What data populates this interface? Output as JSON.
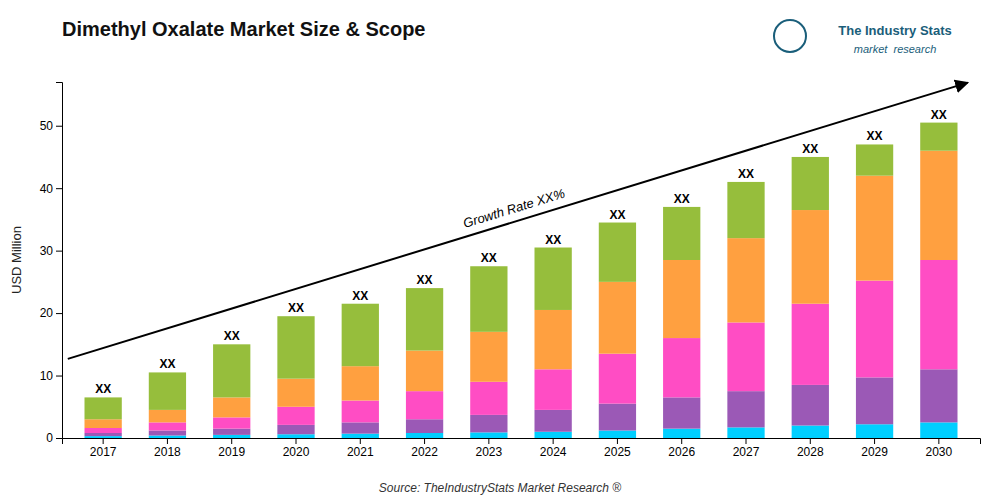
{
  "chart_data": {
    "type": "bar",
    "stacked": true,
    "title": "Dimethyl Oxalate Market Size & Scope",
    "ylabel": "USD Million",
    "source": "Source: TheIndustryStats Market Research ®",
    "growth_label": "Growth Rate XX%",
    "logo": {
      "name": "The Industry Stats",
      "tagline": "market  research"
    },
    "categories": [
      "2017",
      "2018",
      "2019",
      "2020",
      "2021",
      "2022",
      "2023",
      "2024",
      "2025",
      "2026",
      "2027",
      "2028",
      "2029",
      "2030"
    ],
    "bar_labels": [
      "XX",
      "XX",
      "XX",
      "XX",
      "XX",
      "XX",
      "XX",
      "XX",
      "XX",
      "XX",
      "XX",
      "XX",
      "XX",
      "XX"
    ],
    "series": [
      {
        "color": "#00CFFF",
        "values": [
          0.3,
          0.4,
          0.5,
          0.6,
          0.7,
          0.8,
          0.9,
          1.0,
          1.2,
          1.5,
          1.7,
          2.0,
          2.2,
          2.5
        ]
      },
      {
        "color": "#9B59B6",
        "values": [
          0.5,
          0.8,
          1.0,
          1.5,
          1.8,
          2.2,
          2.8,
          3.5,
          4.3,
          5.0,
          5.8,
          6.5,
          7.5,
          8.5
        ]
      },
      {
        "color": "#FF4DC4",
        "values": [
          0.8,
          1.3,
          1.8,
          2.9,
          3.5,
          4.5,
          5.3,
          6.5,
          8.0,
          9.5,
          11.0,
          13.0,
          15.5,
          17.5
        ]
      },
      {
        "color": "#FFA040",
        "values": [
          1.4,
          2.0,
          3.2,
          4.5,
          5.5,
          6.5,
          8.0,
          9.5,
          11.5,
          12.5,
          13.5,
          15.0,
          16.8,
          17.5
        ]
      },
      {
        "color": "#96BE3C",
        "values": [
          3.5,
          6.0,
          8.5,
          10.0,
          10.0,
          10.0,
          10.5,
          10.0,
          9.5,
          8.5,
          9.0,
          8.5,
          5.0,
          4.5
        ]
      }
    ],
    "ylim": [
      0,
      57
    ],
    "yticks": [
      0,
      10,
      20,
      30,
      40,
      50
    ],
    "grid": false
  }
}
